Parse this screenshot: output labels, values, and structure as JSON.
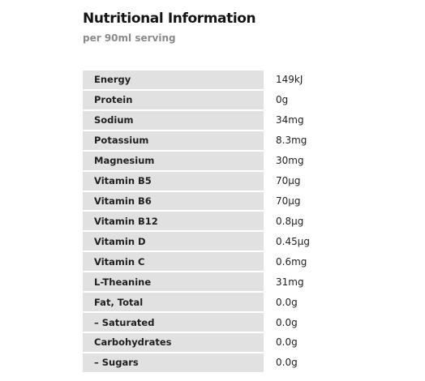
{
  "header": {
    "title": "Nutritional Information",
    "subtitle": "per 90ml serving"
  },
  "nutrients": [
    {
      "label": "Energy",
      "value": "149kJ"
    },
    {
      "label": "Protein",
      "value": "0g"
    },
    {
      "label": "Sodium",
      "value": "34mg"
    },
    {
      "label": "Potassium",
      "value": "8.3mg"
    },
    {
      "label": "Magnesium",
      "value": "30mg"
    },
    {
      "label": "Vitamin B5",
      "value": "70µg"
    },
    {
      "label": "Vitamin B6",
      "value": "70µg"
    },
    {
      "label": "Vitamin B12",
      "value": "0.8µg"
    },
    {
      "label": "Vitamin D",
      "value": "0.45µg"
    },
    {
      "label": "Vitamin C",
      "value": "0.6mg"
    },
    {
      "label": "L-Theanine",
      "value": "31mg"
    },
    {
      "label": "Fat, Total",
      "value": "0.0g"
    },
    {
      "label": "– Saturated",
      "value": "0.0g"
    },
    {
      "label": "Carbohydrates",
      "value": "0.0g"
    },
    {
      "label": "– Sugars",
      "value": "0.0g"
    }
  ]
}
